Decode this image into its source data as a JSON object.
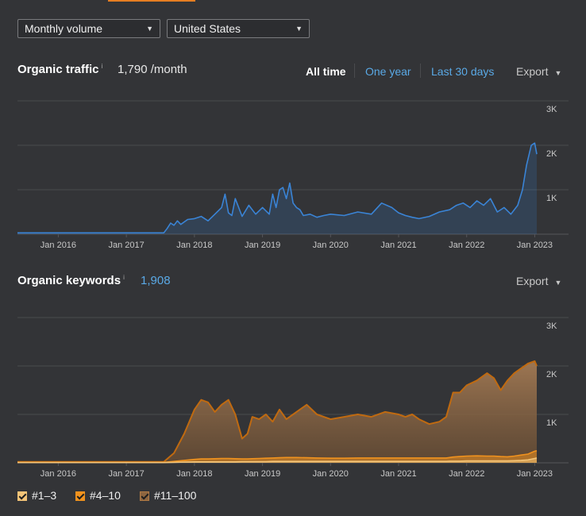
{
  "filters": {
    "volume_label": "Monthly volume",
    "country_label": "United States"
  },
  "colors": {
    "accent": "#e67e22",
    "traffic_line": "#3a84d6",
    "kw_top3": "#f3c478",
    "kw_4_10": "#f0921e",
    "kw_11_100": "#8c6540"
  },
  "traffic": {
    "title": "Organic traffic",
    "info": "i",
    "value": "1,790 /month",
    "ranges": [
      "All time",
      "One year",
      "Last 30 days"
    ],
    "export_label": "Export"
  },
  "keywords": {
    "title": "Organic keywords",
    "info": "i",
    "value": "1,908",
    "export_label": "Export"
  },
  "legend": [
    "#1–3",
    "#4–10",
    "#11–100"
  ],
  "chart_data": [
    {
      "type": "line",
      "title": "Organic traffic",
      "x_ticks": [
        "Jan 2016",
        "Jan 2017",
        "Jan 2018",
        "Jan 2019",
        "Jan 2020",
        "Jan 2021",
        "Jan 2022",
        "Jan 2023"
      ],
      "y_ticks": [
        "3K",
        "2K",
        "1K"
      ],
      "ylim": [
        0,
        3000
      ],
      "xlim": [
        2015.4,
        2023.1
      ],
      "series": [
        {
          "name": "Organic traffic",
          "x": [
            2015.4,
            2017.0,
            2017.55,
            2017.6,
            2017.65,
            2017.7,
            2017.75,
            2017.8,
            2017.9,
            2018.0,
            2018.1,
            2018.2,
            2018.3,
            2018.4,
            2018.45,
            2018.5,
            2018.55,
            2018.6,
            2018.7,
            2018.8,
            2018.9,
            2019.0,
            2019.1,
            2019.15,
            2019.2,
            2019.25,
            2019.3,
            2019.35,
            2019.4,
            2019.45,
            2019.5,
            2019.55,
            2019.6,
            2019.7,
            2019.8,
            2019.9,
            2020.0,
            2020.2,
            2020.4,
            2020.6,
            2020.75,
            2020.9,
            2021.0,
            2021.1,
            2021.2,
            2021.3,
            2021.45,
            2021.6,
            2021.75,
            2021.85,
            2021.95,
            2022.05,
            2022.15,
            2022.25,
            2022.35,
            2022.45,
            2022.55,
            2022.65,
            2022.75,
            2022.82,
            2022.88,
            2022.95,
            2023.0,
            2023.03
          ],
          "values": [
            30,
            30,
            30,
            130,
            250,
            200,
            300,
            220,
            330,
            350,
            400,
            300,
            450,
            600,
            900,
            480,
            420,
            800,
            400,
            650,
            450,
            600,
            450,
            900,
            600,
            1000,
            1050,
            800,
            1150,
            700,
            600,
            550,
            420,
            450,
            380,
            420,
            450,
            420,
            500,
            450,
            700,
            600,
            480,
            420,
            380,
            350,
            400,
            500,
            550,
            650,
            700,
            600,
            750,
            650,
            800,
            500,
            600,
            450,
            650,
            1000,
            1550,
            2000,
            2050,
            1800
          ]
        }
      ]
    },
    {
      "type": "area",
      "title": "Organic keywords",
      "x_ticks": [
        "Jan 2016",
        "Jan 2017",
        "Jan 2018",
        "Jan 2019",
        "Jan 2020",
        "Jan 2021",
        "Jan 2022",
        "Jan 2023"
      ],
      "y_ticks": [
        "3K",
        "2K",
        "1K"
      ],
      "ylim": [
        0,
        3000
      ],
      "xlim": [
        2015.4,
        2023.1
      ],
      "x": [
        2015.4,
        2017.55,
        2017.7,
        2017.85,
        2018.0,
        2018.1,
        2018.2,
        2018.3,
        2018.4,
        2018.5,
        2018.6,
        2018.7,
        2018.78,
        2018.85,
        2018.95,
        2019.05,
        2019.15,
        2019.25,
        2019.35,
        2019.5,
        2019.65,
        2019.8,
        2020.0,
        2020.2,
        2020.4,
        2020.6,
        2020.8,
        2021.0,
        2021.1,
        2021.2,
        2021.3,
        2021.45,
        2021.6,
        2021.7,
        2021.75,
        2021.8,
        2021.9,
        2022.0,
        2022.15,
        2022.3,
        2022.4,
        2022.5,
        2022.6,
        2022.7,
        2022.8,
        2022.9,
        2023.0,
        2023.03
      ],
      "series": [
        {
          "name": "#1–3",
          "values": [
            5,
            5,
            10,
            15,
            20,
            20,
            20,
            20,
            20,
            20,
            20,
            25,
            25,
            25,
            25,
            25,
            30,
            30,
            30,
            30,
            30,
            30,
            30,
            30,
            30,
            30,
            30,
            30,
            30,
            30,
            30,
            30,
            30,
            30,
            35,
            35,
            35,
            40,
            40,
            40,
            40,
            40,
            40,
            45,
            50,
            60,
            90,
            100
          ]
        },
        {
          "name": "#4–10",
          "values": [
            10,
            10,
            30,
            50,
            70,
            80,
            80,
            85,
            90,
            90,
            85,
            80,
            80,
            85,
            90,
            95,
            100,
            105,
            110,
            110,
            105,
            100,
            95,
            95,
            100,
            100,
            100,
            100,
            100,
            100,
            100,
            100,
            100,
            100,
            110,
            120,
            130,
            140,
            145,
            140,
            140,
            130,
            125,
            140,
            160,
            180,
            240,
            250
          ]
        },
        {
          "name": "#11–100",
          "values": [
            20,
            20,
            200,
            600,
            1100,
            1300,
            1250,
            1050,
            1200,
            1300,
            1000,
            500,
            600,
            950,
            900,
            1000,
            850,
            1100,
            900,
            1050,
            1200,
            1000,
            900,
            950,
            1000,
            950,
            1050,
            1000,
            950,
            1000,
            900,
            800,
            850,
            950,
            1200,
            1450,
            1450,
            1600,
            1700,
            1850,
            1750,
            1500,
            1700,
            1850,
            1950,
            2050,
            2100,
            2000
          ]
        }
      ]
    }
  ]
}
